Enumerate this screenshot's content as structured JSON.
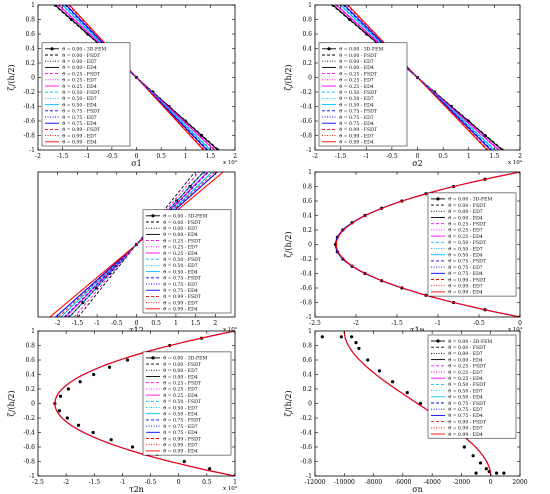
{
  "panel_ylabel": "ζ/(h/2)",
  "legend_entries": [
    "ϑ = 0.00 - 3D-FEM",
    "ϑ = 0.00 - FSDT",
    "ϑ = 0.00 - ED7",
    "ϑ = 0.00 - ED4",
    "ϑ = 0.25 - FSDT",
    "ϑ = 0.25 - ED7",
    "ϑ = 0.25 - ED4",
    "ϑ = 0.50 - FSDT",
    "ϑ = 0.50 - ED7",
    "ϑ = 0.50 - ED4",
    "ϑ = 0.75 - FSDT",
    "ϑ = 0.75 - ED7",
    "ϑ = 0.75 - ED4",
    "ϑ = 0.99 - FSDT",
    "ϑ = 0.99 - ED7",
    "ϑ = 0.99 - ED4"
  ],
  "legend_styles": [
    {
      "color": "#000000",
      "dash": "none",
      "marker": true
    },
    {
      "color": "#000000",
      "dash": "3,2",
      "marker": false
    },
    {
      "color": "#000000",
      "dash": "1,1.5",
      "marker": false
    },
    {
      "color": "#000000",
      "dash": "none",
      "marker": false
    },
    {
      "color": "#ff00ff",
      "dash": "3,2",
      "marker": false
    },
    {
      "color": "#ff00ff",
      "dash": "1,1.5",
      "marker": false
    },
    {
      "color": "#ff00ff",
      "dash": "none",
      "marker": false
    },
    {
      "color": "#00bfff",
      "dash": "3,2",
      "marker": false
    },
    {
      "color": "#00bfff",
      "dash": "1,1.5",
      "marker": false
    },
    {
      "color": "#00bfff",
      "dash": "none",
      "marker": false
    },
    {
      "color": "#0000ff",
      "dash": "3,2",
      "marker": false
    },
    {
      "color": "#0000ff",
      "dash": "1,1.5",
      "marker": false
    },
    {
      "color": "#0000ff",
      "dash": "none",
      "marker": false
    },
    {
      "color": "#ff0000",
      "dash": "3,2",
      "marker": false
    },
    {
      "color": "#ff0000",
      "dash": "1,1.5",
      "marker": false
    },
    {
      "color": "#ff0000",
      "dash": "none",
      "marker": false
    }
  ],
  "chart_data": [
    {
      "type": "line",
      "xlabel": "σ1",
      "ylabel": "ζ/(h/2)",
      "xlim": [
        -20000,
        20000
      ],
      "ylim": [
        -1,
        1
      ],
      "xticks": [
        -20000,
        -15000,
        -10000,
        -5000,
        0,
        5000,
        10000,
        15000,
        20000
      ],
      "xtick_labels": [
        "-2",
        "-1.5",
        "-1",
        "-0.5",
        "0",
        "0.5",
        "1",
        "1.5",
        "2"
      ],
      "yticks": [
        -1,
        -0.8,
        -0.6,
        -0.4,
        -0.2,
        0,
        0.2,
        0.4,
        0.6,
        0.8,
        1
      ],
      "ytick_labels": [
        "-1",
        "-0.8",
        "-0.6",
        "-0.4",
        "-0.2",
        "0",
        "0.2",
        "0.4",
        "0.6",
        "0.8",
        "1"
      ],
      "exponent": "x 10⁴",
      "legend_position": "lower-left",
      "series": [
        {
          "name": "ϑ = 0.00 - 3D-FEM",
          "color": "#000000",
          "style": "markers",
          "x": [
            -16500,
            -13200,
            -9900,
            -6600,
            -3300,
            0,
            3300,
            6600,
            9900,
            13200,
            16500
          ],
          "y": [
            1,
            0.8,
            0.6,
            0.4,
            0.2,
            0,
            -0.2,
            -0.4,
            -0.6,
            -0.8,
            -1
          ]
        },
        {
          "name": "ϑ = 0.00",
          "color": "#000000",
          "style": "solid",
          "x": [
            -16500,
            16500
          ],
          "y": [
            1,
            -1
          ]
        },
        {
          "name": "ϑ = 0.25",
          "color": "#ff00ff",
          "style": "solid",
          "x": [
            -15800,
            15800
          ],
          "y": [
            1,
            -1
          ]
        },
        {
          "name": "ϑ = 0.50",
          "color": "#00bfff",
          "style": "solid",
          "x": [
            -15000,
            15000
          ],
          "y": [
            1,
            -1
          ]
        },
        {
          "name": "ϑ = 0.75",
          "color": "#0000ff",
          "style": "solid",
          "x": [
            -14300,
            14300
          ],
          "y": [
            1,
            -1
          ]
        },
        {
          "name": "ϑ = 0.99",
          "color": "#ff0000",
          "style": "solid",
          "x": [
            -13600,
            13600
          ],
          "y": [
            1,
            -1
          ]
        }
      ]
    },
    {
      "type": "line",
      "xlabel": "σ2",
      "ylabel": "ζ/(h/2)",
      "xlim": [
        -20000,
        20000
      ],
      "ylim": [
        -1,
        1
      ],
      "xticks": [
        -20000,
        -15000,
        -10000,
        -5000,
        0,
        5000,
        10000,
        15000,
        20000
      ],
      "xtick_labels": [
        "-2",
        "-1.5",
        "-1",
        "-0.5",
        "0",
        "0.5",
        "1",
        "1.5",
        "2"
      ],
      "yticks": [
        -1,
        -0.8,
        -0.6,
        -0.4,
        -0.2,
        0,
        0.2,
        0.4,
        0.6,
        0.8,
        1
      ],
      "ytick_labels": [
        "-1",
        "-0.8",
        "-0.6",
        "-0.4",
        "-0.2",
        "0",
        "0.2",
        "0.4",
        "0.6",
        "0.8",
        "1"
      ],
      "exponent": "x 10⁴",
      "legend_position": "lower-left",
      "series": [
        {
          "name": "ϑ = 0.00 - 3D-FEM",
          "color": "#000000",
          "style": "markers",
          "x": [
            -16500,
            -13200,
            -9900,
            -6600,
            -3300,
            0,
            3300,
            6600,
            9900,
            13200,
            16500
          ],
          "y": [
            1,
            0.8,
            0.6,
            0.4,
            0.2,
            0,
            -0.2,
            -0.4,
            -0.6,
            -0.8,
            -1
          ]
        },
        {
          "name": "ϑ = 0.00",
          "color": "#000000",
          "style": "solid",
          "x": [
            -16500,
            16500
          ],
          "y": [
            1,
            -1
          ]
        },
        {
          "name": "ϑ = 0.25",
          "color": "#ff00ff",
          "style": "solid",
          "x": [
            -15800,
            15800
          ],
          "y": [
            1,
            -1
          ]
        },
        {
          "name": "ϑ = 0.50",
          "color": "#00bfff",
          "style": "solid",
          "x": [
            -15000,
            15000
          ],
          "y": [
            1,
            -1
          ]
        },
        {
          "name": "ϑ = 0.75",
          "color": "#0000ff",
          "style": "solid",
          "x": [
            -14300,
            14300
          ],
          "y": [
            1,
            -1
          ]
        },
        {
          "name": "ϑ = 0.99",
          "color": "#ff0000",
          "style": "solid",
          "x": [
            -13600,
            13600
          ],
          "y": [
            1,
            -1
          ]
        }
      ]
    },
    {
      "type": "line",
      "xlabel": "τ12",
      "ylabel": "",
      "xlim": [
        -2500,
        2500
      ],
      "ylim": [
        -1,
        1
      ],
      "xticks": [
        -2000,
        -1500,
        -1000,
        -500,
        0,
        500,
        1000,
        1500,
        2000
      ],
      "xtick_labels": [
        "-2",
        "-1.5",
        "-1",
        "-0.5",
        "0",
        "0.5",
        "1",
        "1.5",
        "2"
      ],
      "yticks": [],
      "ytick_labels": [],
      "exponent": "x 10³",
      "legend_position": "lower-right",
      "series": [
        {
          "name": "ϑ = 0.00 - 3D-FEM",
          "color": "#000000",
          "style": "markers",
          "x": [
            -1700,
            -1360,
            -1020,
            -680,
            -340,
            0,
            340,
            680,
            1020,
            1360,
            1700
          ],
          "y": [
            -1,
            -0.8,
            -0.6,
            -0.4,
            -0.2,
            0,
            0.2,
            0.4,
            0.6,
            0.8,
            1
          ]
        },
        {
          "name": "ϑ = 0.00",
          "color": "#000000",
          "style": "solid",
          "x": [
            -1700,
            1700
          ],
          "y": [
            -1,
            1
          ]
        },
        {
          "name": "ϑ = 0.25",
          "color": "#ff00ff",
          "style": "solid",
          "x": [
            -1800,
            1800
          ],
          "y": [
            -1,
            1
          ]
        },
        {
          "name": "ϑ = 0.50",
          "color": "#00bfff",
          "style": "solid",
          "x": [
            -1920,
            1920
          ],
          "y": [
            -1,
            1
          ]
        },
        {
          "name": "ϑ = 0.75",
          "color": "#0000ff",
          "style": "solid",
          "x": [
            -2050,
            2050
          ],
          "y": [
            -1,
            1
          ]
        },
        {
          "name": "ϑ = 0.99",
          "color": "#ff0000",
          "style": "solid",
          "x": [
            -2200,
            2200
          ],
          "y": [
            -1,
            1
          ]
        }
      ]
    },
    {
      "type": "line",
      "xlabel": "τ1n",
      "ylabel": "ζ/(h/2)",
      "xlim": [
        -25000,
        0
      ],
      "ylim": [
        -1,
        1
      ],
      "xticks": [
        -25000,
        -20000,
        -15000,
        -10000,
        -5000,
        0
      ],
      "xtick_labels": [
        "-2.5",
        "-2",
        "-1.5",
        "-1",
        "-0.5",
        "0"
      ],
      "yticks": [
        -1,
        -0.8,
        -0.6,
        -0.4,
        -0.2,
        0,
        0.2,
        0.4,
        0.6,
        0.8,
        1
      ],
      "ytick_labels": [
        "-1",
        "-0.8",
        "-0.6",
        "-0.4",
        "-0.2",
        "0",
        "0.2",
        "0.4",
        "0.6",
        "0.8",
        "1"
      ],
      "exponent": "x 10⁴",
      "legend_position": "right",
      "series": [
        {
          "name": "ϑ = 0.00 - 3D-FEM",
          "color": "#000000",
          "style": "markers",
          "x": [
            0,
            -4275,
            -8100,
            -11475,
            -14400,
            -16875,
            -18900,
            -20475,
            -21600,
            -22275,
            -22500,
            -22275,
            -21600,
            -20475,
            -18900,
            -16875,
            -14400,
            -11475,
            -8100,
            -4275,
            0
          ],
          "y": [
            1,
            0.9,
            0.8,
            0.7,
            0.6,
            0.5,
            0.4,
            0.3,
            0.2,
            0.1,
            0,
            -0.1,
            -0.2,
            -0.3,
            -0.4,
            -0.5,
            -0.6,
            -0.7,
            -0.8,
            -0.9,
            -1
          ]
        },
        {
          "name": "ϑ = 0.00",
          "color": "#0000ff",
          "style": "parabola",
          "peak": -22500
        },
        {
          "name": "ϑ = 0.99",
          "color": "#ff0000",
          "style": "parabola",
          "peak": -22400
        }
      ]
    },
    {
      "type": "line",
      "xlabel": "τ2n",
      "ylabel": "ζ/(h/2)",
      "xlim": [
        -25000,
        10000
      ],
      "ylim": [
        -1,
        1
      ],
      "xticks": [
        -25000,
        -20000,
        -15000,
        -10000,
        -5000,
        0,
        5000,
        10000
      ],
      "xtick_labels": [
        "-2.5",
        "-2",
        "-1.5",
        "-1",
        "-0.5",
        "0",
        "0.5",
        "1"
      ],
      "yticks": [
        -1,
        -0.8,
        -0.6,
        -0.4,
        -0.2,
        0,
        0.2,
        0.4,
        0.6,
        0.8,
        1
      ],
      "ytick_labels": [
        "-1",
        "-0.8",
        "-0.6",
        "-0.4",
        "-0.2",
        "0",
        "0.2",
        "0.4",
        "0.6",
        "0.8",
        "1"
      ],
      "exponent": "x 10⁴",
      "legend_position": "right",
      "series": [
        {
          "name": "ϑ = 0.00 - 3D-FEM",
          "color": "#000000",
          "style": "markers",
          "x": [
            10000,
            4050,
            -1600,
            -5400,
            -9100,
            -12300,
            -15100,
            -17500,
            -19600,
            -21000,
            -22000,
            -21200,
            -19800,
            -17800,
            -15200,
            -12000,
            -8200,
            -3800,
            1000,
            5500,
            10000
          ],
          "y": [
            1,
            0.9,
            0.8,
            0.7,
            0.6,
            0.5,
            0.4,
            0.3,
            0.2,
            0.1,
            0,
            -0.1,
            -0.2,
            -0.3,
            -0.4,
            -0.5,
            -0.6,
            -0.7,
            -0.8,
            -0.9,
            -1
          ]
        },
        {
          "name": "ϑ = 0.00",
          "color": "#0000ff",
          "style": "parabola-shift",
          "peak": -22000,
          "edge": 10000
        },
        {
          "name": "ϑ = 0.99",
          "color": "#ff0000",
          "style": "parabola-shift",
          "peak": -22000,
          "edge": 10000
        }
      ]
    },
    {
      "type": "line",
      "xlabel": "σn",
      "ylabel": "ζ/(h/2)",
      "xlim": [
        -12000,
        2000
      ],
      "ylim": [
        -1,
        1
      ],
      "xticks": [
        -12000,
        -10000,
        -8000,
        -6000,
        -4000,
        -2000,
        0,
        2000
      ],
      "xtick_labels": [
        "-12000",
        "-10000",
        "-8000",
        "-6000",
        "-4000",
        "-2000",
        "0",
        "2000"
      ],
      "yticks": [
        -1,
        -0.8,
        -0.6,
        -0.4,
        -0.2,
        0,
        0.2,
        0.4,
        0.6,
        0.8,
        1
      ],
      "ytick_labels": [
        "-1",
        "-0.8",
        "-0.6",
        "-0.4",
        "-0.2",
        "0",
        "0.2",
        "0.4",
        "0.6",
        "0.8",
        "1"
      ],
      "exponent": "",
      "legend_position": "top-right",
      "series": [
        {
          "name": "ϑ = 0.00 - 3D-FEM",
          "color": "#000000",
          "style": "markers",
          "x": [
            -11500,
            -10200,
            -9500,
            -9200,
            -9000,
            -8400,
            -7600,
            -6700,
            -5700,
            -4800,
            -3900,
            -3100,
            -2400,
            -1800,
            -1200,
            -700,
            -300,
            -100,
            400,
            900,
            -1000
          ],
          "y": [
            0.92,
            0.92,
            0.92,
            0.84,
            0.76,
            0.6,
            0.45,
            0.3,
            0.15,
            0,
            -0.15,
            -0.3,
            -0.45,
            -0.6,
            -0.72,
            -0.82,
            -0.9,
            -0.94,
            -0.96,
            -0.96,
            -0.96
          ]
        },
        {
          "name": "ϑ = 0.00",
          "color": "#0000ff",
          "style": "cubic",
          "top": -10000,
          "bottom": 0
        },
        {
          "name": "ϑ = 0.99",
          "color": "#ff0000",
          "style": "cubic",
          "top": -10000,
          "bottom": 0
        }
      ]
    }
  ]
}
